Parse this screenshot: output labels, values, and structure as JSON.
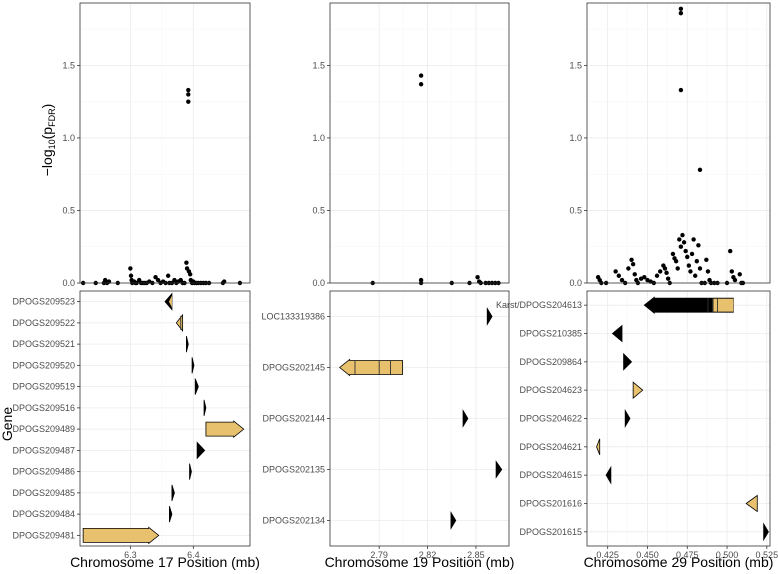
{
  "chart_data": {
    "type": "scatter",
    "y_label": "−log₁₀(pᶠᴰᴿ)",
    "y_label_main": "−log",
    "y_label_sub": "10",
    "y_label_paren": "(p",
    "y_label_subscript2": "FDR",
    "y_label_close": ")",
    "gene_axis_label": "Gene",
    "y_ticks": [
      "0.0",
      "0.5",
      "1.0",
      "1.5"
    ],
    "ylim": [
      0,
      1.93
    ],
    "colors": {
      "point": "#000000",
      "gene_dark": "#000000",
      "gene_light": "#e8c16e",
      "exon_line": "#333333"
    },
    "panels": [
      {
        "xlabel": "Chromosome 17 Position (mb)",
        "xlim": [
          6.22,
          6.49
        ],
        "x_ticks": [
          6.3,
          6.4
        ],
        "x_tick_labels": [
          "6.3",
          "6.4"
        ],
        "points": [
          [
            6.225,
            0
          ],
          [
            6.245,
            0
          ],
          [
            6.258,
            0
          ],
          [
            6.26,
            0.02
          ],
          [
            6.263,
            0
          ],
          [
            6.266,
            0.01
          ],
          [
            6.28,
            0
          ],
          [
            6.3,
            0.1
          ],
          [
            6.301,
            0.05
          ],
          [
            6.302,
            0.02
          ],
          [
            6.303,
            0
          ],
          [
            6.306,
            0.01
          ],
          [
            6.308,
            0
          ],
          [
            6.31,
            0
          ],
          [
            6.314,
            0.02
          ],
          [
            6.317,
            0
          ],
          [
            6.32,
            0
          ],
          [
            6.323,
            0
          ],
          [
            6.326,
            0
          ],
          [
            6.33,
            0.01
          ],
          [
            6.335,
            0
          ],
          [
            6.34,
            0.04
          ],
          [
            6.344,
            0.02
          ],
          [
            6.348,
            0
          ],
          [
            6.352,
            0.01
          ],
          [
            6.356,
            0
          ],
          [
            6.36,
            0.05
          ],
          [
            6.362,
            0
          ],
          [
            6.366,
            0
          ],
          [
            6.37,
            0.02
          ],
          [
            6.373,
            0
          ],
          [
            6.376,
            0.01
          ],
          [
            6.38,
            0.02
          ],
          [
            6.383,
            0
          ],
          [
            6.386,
            0
          ],
          [
            6.389,
            0.14
          ],
          [
            6.39,
            0.1
          ],
          [
            6.392,
            1.33
          ],
          [
            6.392,
            1.3
          ],
          [
            6.392,
            1.25
          ],
          [
            6.393,
            0.08
          ],
          [
            6.395,
            0.06
          ],
          [
            6.396,
            0.02
          ],
          [
            6.398,
            0
          ],
          [
            6.4,
            0.01
          ],
          [
            6.402,
            0
          ],
          [
            6.405,
            0
          ],
          [
            6.408,
            0
          ],
          [
            6.412,
            0
          ],
          [
            6.416,
            0
          ],
          [
            6.42,
            0
          ],
          [
            6.425,
            0
          ],
          [
            6.447,
            0
          ],
          [
            6.449,
            0.01
          ],
          [
            6.474,
            0
          ]
        ],
        "genes": [
          {
            "label": "DPOGS209523",
            "start": 6.366,
            "end": 6.355,
            "color": "dark-light",
            "exons": []
          },
          {
            "label": "DPOGS209522",
            "start": 6.383,
            "end": 6.373,
            "color": "light",
            "exons": [
              6.38
            ]
          },
          {
            "label": "DPOGS209521",
            "start": 6.389,
            "end": 6.392,
            "color": "dark",
            "exons": []
          },
          {
            "label": "DPOGS209520",
            "start": 6.398,
            "end": 6.401,
            "color": "dark",
            "exons": []
          },
          {
            "label": "DPOGS209519",
            "start": 6.403,
            "end": 6.408,
            "color": "dark",
            "exons": []
          },
          {
            "label": "DPOGS209516",
            "start": 6.417,
            "end": 6.42,
            "color": "dark",
            "exons": []
          },
          {
            "label": "DPOGS209489",
            "start": 6.42,
            "end": 6.48,
            "color": "light",
            "exons": []
          },
          {
            "label": "DPOGS209487",
            "start": 6.406,
            "end": 6.418,
            "color": "dark",
            "exons": []
          },
          {
            "label": "DPOGS209486",
            "start": 6.394,
            "end": 6.397,
            "color": "dark",
            "exons": []
          },
          {
            "label": "DPOGS209485",
            "start": 6.366,
            "end": 6.37,
            "color": "dark",
            "exons": []
          },
          {
            "label": "DPOGS209484",
            "start": 6.362,
            "end": 6.366,
            "color": "dark",
            "exons": []
          },
          {
            "label": "DPOGS209481",
            "start": 6.225,
            "end": 6.345,
            "color": "light",
            "exons": []
          }
        ]
      },
      {
        "xlabel": "Chromosome 19 Position (mb)",
        "xlim": [
          2.7595,
          2.8705
        ],
        "x_ticks": [
          2.79,
          2.82,
          2.85
        ],
        "x_tick_labels": [
          "2.79",
          "2.82",
          "2.85"
        ],
        "points": [
          [
            2.786,
            0
          ],
          [
            2.816,
            1.43
          ],
          [
            2.816,
            1.37
          ],
          [
            2.816,
            0.02
          ],
          [
            2.816,
            0
          ],
          [
            2.835,
            0
          ],
          [
            2.846,
            0
          ],
          [
            2.851,
            0.04
          ],
          [
            2.852,
            0.01
          ],
          [
            2.853,
            0
          ],
          [
            2.856,
            0
          ],
          [
            2.858,
            0
          ],
          [
            2.86,
            0
          ],
          [
            2.862,
            0
          ],
          [
            2.864,
            0
          ]
        ],
        "genes": [
          {
            "label": "LOC133319386",
            "start": 2.857,
            "end": 2.86,
            "color": "dark",
            "exons": []
          },
          {
            "label": "DPOGS202145",
            "start": 2.8045,
            "end": 2.7655,
            "color": "light",
            "exons": [
              2.775,
              2.79,
              2.797
            ]
          },
          {
            "label": "DPOGS202144",
            "start": 2.842,
            "end": 2.845,
            "color": "dark",
            "exons": []
          },
          {
            "label": "DPOGS202135",
            "start": 2.8625,
            "end": 2.866,
            "color": "dark",
            "exons": []
          },
          {
            "label": "DPOGS202134",
            "start": 2.8345,
            "end": 2.8375,
            "color": "dark",
            "exons": []
          }
        ]
      },
      {
        "xlabel": "Chromosome 29 Position (mb)",
        "xlim": [
          0.412,
          0.527
        ],
        "x_ticks": [
          0.425,
          0.45,
          0.475,
          0.5,
          0.525
        ],
        "x_tick_labels": [
          "0.425",
          "0.450",
          "0.475",
          "0.500",
          "0.525"
        ],
        "points": [
          [
            0.419,
            0.04
          ],
          [
            0.42,
            0.02
          ],
          [
            0.421,
            0
          ],
          [
            0.424,
            0
          ],
          [
            0.43,
            0.08
          ],
          [
            0.432,
            0.05
          ],
          [
            0.434,
            0.02
          ],
          [
            0.436,
            0
          ],
          [
            0.438,
            0.1
          ],
          [
            0.44,
            0.16
          ],
          [
            0.441,
            0.13
          ],
          [
            0.442,
            0.06
          ],
          [
            0.443,
            0.02
          ],
          [
            0.444,
            0
          ],
          [
            0.446,
            0.03
          ],
          [
            0.448,
            0.04
          ],
          [
            0.45,
            0.02
          ],
          [
            0.452,
            0.01
          ],
          [
            0.454,
            0
          ],
          [
            0.456,
            0.05
          ],
          [
            0.458,
            0.08
          ],
          [
            0.46,
            0.12
          ],
          [
            0.461,
            0.1
          ],
          [
            0.462,
            0.07
          ],
          [
            0.463,
            0.03
          ],
          [
            0.464,
            0
          ],
          [
            0.466,
            0.2
          ],
          [
            0.467,
            0.17
          ],
          [
            0.468,
            0.15
          ],
          [
            0.469,
            0.1
          ],
          [
            0.47,
            0.3
          ],
          [
            0.471,
            0.25
          ],
          [
            0.472,
            0.33
          ],
          [
            0.473,
            0.28
          ],
          [
            0.474,
            0.22
          ],
          [
            0.475,
            0.18
          ],
          [
            0.476,
            0.12
          ],
          [
            0.477,
            0.08
          ],
          [
            0.478,
            0.2
          ],
          [
            0.479,
            0.3
          ],
          [
            0.48,
            0.05
          ],
          [
            0.481,
            0.15
          ],
          [
            0.482,
            0.26
          ],
          [
            0.483,
            0.1
          ],
          [
            0.484,
            0
          ],
          [
            0.486,
            0
          ],
          [
            0.487,
            0.16
          ],
          [
            0.488,
            0.08
          ],
          [
            0.489,
            0.02
          ],
          [
            0.49,
            0
          ],
          [
            0.494,
            0
          ],
          [
            0.502,
            0.22
          ],
          [
            0.503,
            0.08
          ],
          [
            0.504,
            0.04
          ],
          [
            0.505,
            0.02
          ],
          [
            0.508,
            0.06
          ],
          [
            0.509,
            0
          ],
          [
            0.51,
            0
          ],
          [
            0.471,
            1.89
          ],
          [
            0.471,
            1.86
          ],
          [
            0.471,
            1.33
          ],
          [
            0.483,
            0.78
          ],
          [
            0.492,
            0
          ],
          [
            0.5,
            0
          ]
        ],
        "genes": [
          {
            "label": "Karst/DPOGS204613",
            "start": 0.504,
            "end": 0.448,
            "color": "dark-light",
            "exons": [
              0.488,
              0.491,
              0.494
            ]
          },
          {
            "label": "DPOGS210385",
            "start": 0.434,
            "end": 0.428,
            "color": "dark",
            "exons": []
          },
          {
            "label": "DPOGS209864",
            "start": 0.435,
            "end": 0.44,
            "color": "dark",
            "exons": []
          },
          {
            "label": "DPOGS204623",
            "start": 0.441,
            "end": 0.447,
            "color": "light",
            "exons": []
          },
          {
            "label": "DPOGS204622",
            "start": 0.436,
            "end": 0.439,
            "color": "dark",
            "exons": []
          },
          {
            "label": "DPOGS204621",
            "start": 0.42,
            "end": 0.418,
            "color": "light",
            "exons": []
          },
          {
            "label": "DPOGS204615",
            "start": 0.427,
            "end": 0.424,
            "color": "dark",
            "exons": []
          },
          {
            "label": "DPOGS201616",
            "start": 0.519,
            "end": 0.512,
            "color": "light",
            "exons": []
          },
          {
            "label": "DPOGS201615",
            "start": 0.523,
            "end": 0.526,
            "color": "dark",
            "exons": []
          }
        ]
      }
    ]
  }
}
